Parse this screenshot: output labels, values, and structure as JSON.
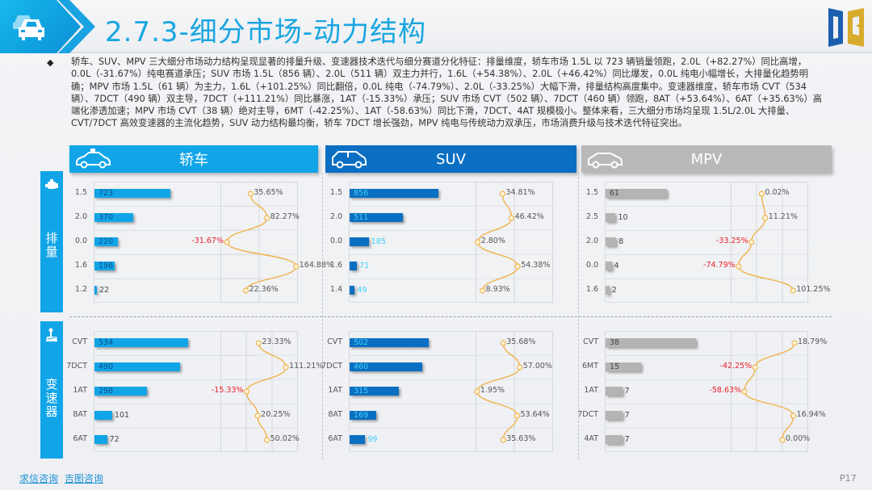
{
  "header": {
    "title": "2.7.3-细分市场-动力结构",
    "icon": "cars-icon",
    "logo": "DB-logo"
  },
  "summary": {
    "bullet": "◆",
    "text": "轿车、SUV、MPV 三大细分市场动力结构呈现显著的排量升级、变速器技术迭代与细分赛道分化特征：排量维度，轿车市场 1.5L 以 723 辆销量领跑，2.0L（+82.27%）同比高增，0.0L（-31.67%）纯电赛道承压；SUV 市场 1.5L（856 辆）、2.0L（511 辆）双主力并行，1.6L（+54.38%）、2.0L（+46.42%）同比爆发，0.0L 纯电小幅增长，大排量化趋势明确；MPV 市场 1.5L（61 辆）为主力，1.6L（+101.25%）同比翻倍，0.0L 纯电（-74.79%）、2.0L（-33.25%）大幅下滑，排量结构高度集中。变速器维度，轿车市场 CVT（534 辆）、7DCT（490 辆）双主导，7DCT（+111.21%）同比暴涨，1AT（-15.33%）承压；SUV 市场 CVT（502 辆）、7DCT（460 辆）领跑，8AT（+53.64%）、6AT（+35.63%）高端化渗透加速；MPV 市场 CVT（38 辆）绝对主导，6MT（-42.25%）、1AT（-58.63%）同比下滑，7DCT、4AT 规模极小。整体来看，三大细分市场均呈现 1.5L/2.0L 大排量、CVT/7DCT 高效变速器的主流化趋势，SUV 动力结构最均衡，轿车 7DCT 增长强劲，MPV 纯电与传统动力双承压，市场消费升级与技术迭代特征突出。"
  },
  "categories": {
    "sedan": {
      "label": "轿车",
      "color": "#11a5e8",
      "icon": "sedan-car-icon"
    },
    "suv": {
      "label": "SUV",
      "color": "#0a6fc2",
      "icon": "suv-car-icon"
    },
    "mpv": {
      "label": "MPV",
      "color": "#b9b9b9",
      "icon": "mpv-car-icon"
    }
  },
  "side_labels": {
    "displacement": {
      "label": "排量",
      "icon": "engine-icon"
    },
    "transmission": {
      "label": "变速器",
      "icon": "gear-shift-icon"
    }
  },
  "colors": {
    "positive_label": "#555555",
    "negative_label": "#e8202a",
    "line": "#f0b24a",
    "point_fill": "#fff6e0"
  },
  "chart_data": [
    {
      "id": "sedan_displacement",
      "type": "bar",
      "title": "轿车-排量",
      "categories": [
        "1.5",
        "2.0",
        "0.0",
        "1.6",
        "1.2"
      ],
      "values": [
        723,
        370,
        220,
        196,
        22
      ],
      "xmax": 800,
      "growth": {
        "type": "line",
        "values": [
          35.65,
          82.27,
          -31.67,
          164.88,
          22.36
        ],
        "labels": [
          "35.65%",
          "82.27%",
          "-31.67%",
          "164.88%",
          "22.36%"
        ],
        "xlim": [
          -50,
          170
        ]
      }
    },
    {
      "id": "suv_displacement",
      "type": "bar",
      "title": "SUV-排量",
      "categories": [
        "1.5",
        "2.0",
        "0.0",
        "1.6",
        "1.4"
      ],
      "values": [
        856,
        511,
        185,
        71,
        49
      ],
      "xmax": 1000,
      "growth": {
        "type": "line",
        "values": [
          34.81,
          46.42,
          2.8,
          54.38,
          8.93
        ],
        "labels": [
          "34.81%",
          "46.42%",
          "2.80%",
          "54.38%",
          "8.93%"
        ],
        "xlim": [
          0,
          100
        ]
      }
    },
    {
      "id": "mpv_displacement",
      "type": "bar",
      "title": "MPV-排量",
      "categories": [
        "1.5",
        "2.5",
        "2.0",
        "0.0",
        "1.6"
      ],
      "values": [
        61,
        10,
        8,
        4,
        2
      ],
      "xmax": 140,
      "growth": {
        "type": "line",
        "values": [
          0.02,
          11.21,
          -33.25,
          -74.79,
          101.25
        ],
        "labels": [
          "0.02%",
          "11.21%",
          "-33.25%",
          "-74.79%",
          "101.25%"
        ],
        "xlim": [
          -100,
          150
        ]
      }
    },
    {
      "id": "sedan_transmission",
      "type": "bar",
      "title": "轿车-变速器",
      "categories": [
        "CVT",
        "7DCT",
        "1AT",
        "8AT",
        "6AT"
      ],
      "values": [
        534,
        490,
        298,
        101,
        72
      ],
      "xmax": 600,
      "growth": {
        "type": "line",
        "values": [
          23.33,
          111.21,
          -15.33,
          20.25,
          50.02
        ],
        "labels": [
          "23.33%",
          "111.21%",
          "-15.33%",
          "20.25%",
          "50.02%"
        ],
        "xlim": [
          -100,
          150
        ]
      }
    },
    {
      "id": "suv_transmission",
      "type": "bar",
      "title": "SUV-变速器",
      "categories": [
        "CVT",
        "7DCT",
        "1AT",
        "8AT",
        "6AT"
      ],
      "values": [
        502,
        460,
        315,
        169,
        99
      ],
      "xmax": 600,
      "growth": {
        "type": "line",
        "values": [
          35.68,
          57.0,
          1.95,
          53.64,
          35.63
        ],
        "labels": [
          "35.68%",
          "57.00%",
          "1.95%",
          "53.64%",
          "35.63%"
        ],
        "xlim": [
          0,
          100
        ]
      }
    },
    {
      "id": "mpv_transmission",
      "type": "bar",
      "title": "MPV-变速器",
      "categories": [
        "CVT",
        "6MT",
        "1AT",
        "7DCT",
        "4AT"
      ],
      "values": [
        38,
        15,
        7,
        7,
        7
      ],
      "xmax": 40,
      "growth": {
        "type": "line",
        "values": [
          18.79,
          -42.25,
          -58.63,
          16.94,
          0.0
        ],
        "labels": [
          "18.79%",
          "-42.25%",
          "-58.63%",
          "16.94%",
          "0.00%"
        ],
        "xlim": [
          -80,
          40
        ]
      }
    }
  ],
  "footer": {
    "links": [
      "求信咨询",
      "吉图咨询"
    ],
    "page": "P17"
  }
}
